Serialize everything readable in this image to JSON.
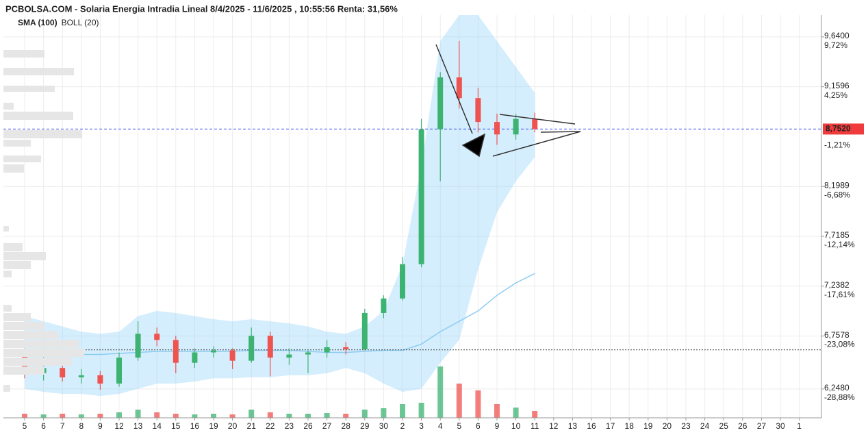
{
  "chart_data": {
    "type": "candlestick",
    "title": "PCBOLSA.COM - Solaria Energia Intradia Lineal 8/4/2025 - 11/6/2025 , 10:55:56 Renta: 31,56%",
    "categories": [
      "5",
      "6",
      "7",
      "8",
      "9",
      "12",
      "13",
      "14",
      "15",
      "16",
      "19",
      "20",
      "21",
      "22",
      "23",
      "26",
      "27",
      "28",
      "29",
      "30",
      "2",
      "3",
      "4",
      "5",
      "6",
      "9",
      "10",
      "11",
      "12",
      "13",
      "16",
      "17",
      "18",
      "19",
      "20",
      "23",
      "24",
      "25",
      "26",
      "27",
      "30",
      "1"
    ],
    "open": [
      6.6,
      6.4,
      6.45,
      6.36,
      6.38,
      6.3,
      6.55,
      6.78,
      6.72,
      6.5,
      6.6,
      6.62,
      6.52,
      6.76,
      6.55,
      6.58,
      6.6,
      6.65,
      6.63,
      6.98,
      7.12,
      7.45,
      8.75,
      9.25,
      9.05,
      8.82,
      8.7,
      8.85,
      null,
      null,
      null,
      null,
      null,
      null,
      null,
      null,
      null,
      null,
      null,
      null,
      null,
      null
    ],
    "high": [
      6.64,
      6.58,
      6.55,
      6.44,
      6.42,
      6.6,
      6.9,
      6.84,
      6.76,
      6.64,
      6.66,
      6.64,
      6.84,
      6.8,
      6.64,
      6.63,
      6.72,
      6.7,
      7.02,
      7.15,
      7.52,
      8.85,
      9.3,
      9.6,
      9.15,
      8.9,
      8.9,
      8.91,
      null,
      null,
      null,
      null,
      null,
      null,
      null,
      null,
      null,
      null,
      null,
      null,
      null,
      null
    ],
    "low": [
      6.35,
      6.33,
      6.32,
      6.3,
      6.24,
      6.27,
      6.52,
      6.66,
      6.4,
      6.45,
      6.55,
      6.44,
      6.5,
      6.37,
      6.48,
      6.4,
      6.55,
      6.58,
      6.62,
      6.93,
      7.1,
      7.42,
      8.25,
      8.95,
      8.72,
      8.6,
      8.65,
      8.72,
      null,
      null,
      null,
      null,
      null,
      null,
      null,
      null,
      null,
      null,
      null,
      null,
      null,
      null
    ],
    "close": [
      6.4,
      6.45,
      6.36,
      6.38,
      6.3,
      6.55,
      6.78,
      6.72,
      6.5,
      6.6,
      6.62,
      6.52,
      6.76,
      6.55,
      6.58,
      6.6,
      6.65,
      6.63,
      6.98,
      7.12,
      7.45,
      8.75,
      9.25,
      9.05,
      8.82,
      8.7,
      8.85,
      8.752,
      null,
      null,
      null,
      null,
      null,
      null,
      null,
      null,
      null,
      null,
      null,
      null,
      null,
      null
    ],
    "volume": [
      6,
      5,
      6,
      5,
      6,
      8,
      12,
      8,
      6,
      5,
      6,
      5,
      12,
      8,
      6,
      6,
      7,
      6,
      12,
      14,
      20,
      22,
      75,
      50,
      40,
      20,
      15,
      10,
      null,
      null,
      null,
      null,
      null,
      null,
      null,
      null,
      null,
      null,
      null,
      null,
      null,
      null
    ],
    "up_color": "#3cb371",
    "down_color": "#ef5350",
    "indicators": [
      {
        "name": "SMA (100)",
        "color": "#8ccbf2",
        "values": [
          6.6,
          6.59,
          6.58,
          6.58,
          6.58,
          6.59,
          6.6,
          6.61,
          6.61,
          6.61,
          6.61,
          6.61,
          6.62,
          6.62,
          6.62,
          6.61,
          6.6,
          6.6,
          6.61,
          6.62,
          6.62,
          6.68,
          6.8,
          6.9,
          7.0,
          7.15,
          7.27,
          7.36,
          null,
          null,
          null,
          null,
          null,
          null,
          null,
          null,
          null,
          null,
          null,
          null,
          null,
          null
        ]
      },
      {
        "name": "BOLL (20)",
        "color": "#b9e0f7",
        "upper": [
          6.95,
          6.9,
          6.85,
          6.8,
          6.78,
          6.8,
          6.95,
          7.0,
          6.98,
          6.95,
          6.92,
          6.9,
          6.92,
          6.9,
          6.88,
          6.85,
          6.8,
          6.78,
          6.85,
          7.0,
          7.45,
          8.4,
          9.6,
          9.85,
          9.85,
          9.6,
          9.35,
          9.1,
          null,
          null,
          null,
          null,
          null,
          null,
          null,
          null,
          null,
          null,
          null,
          null,
          null,
          null
        ],
        "lower": [
          6.25,
          6.22,
          6.2,
          6.2,
          6.18,
          6.2,
          6.25,
          6.3,
          6.3,
          6.32,
          6.35,
          6.35,
          6.36,
          6.36,
          6.38,
          6.38,
          6.4,
          6.45,
          6.4,
          6.3,
          6.22,
          6.25,
          6.5,
          6.72,
          7.4,
          7.95,
          8.25,
          8.48,
          null,
          null,
          null,
          null,
          null,
          null,
          null,
          null,
          null,
          null,
          null,
          null,
          null,
          null
        ]
      }
    ],
    "ylim": [
      5.97,
      9.85
    ],
    "yticks": [
      {
        "value": 9.64,
        "label": "9,6400"
      },
      {
        "value": 9.1596,
        "label": "9,1596"
      },
      {
        "value": 8.1989,
        "label": "8,1989"
      },
      {
        "value": 7.7185,
        "label": "7,7185"
      },
      {
        "value": 7.2382,
        "label": "7,2382"
      },
      {
        "value": 6.7578,
        "label": "6,7578"
      },
      {
        "value": 6.248,
        "label": "6,2480"
      }
    ],
    "y2lim": [
      -32.05,
      12.11
    ],
    "y2ticks": [
      {
        "value": 9.72,
        "label": "9,72%"
      },
      {
        "value": 4.25,
        "label": "4,25%"
      },
      {
        "value": -1.21,
        "label": "-1,21%"
      },
      {
        "value": -6.68,
        "label": "-6,68%"
      },
      {
        "value": -12.14,
        "label": "-12,14%"
      },
      {
        "value": -17.61,
        "label": "-17,61%"
      },
      {
        "value": -23.08,
        "label": "-23,08%"
      },
      {
        "value": -28.88,
        "label": "-28,88%"
      }
    ],
    "current_price": {
      "value": 8.752,
      "label": "8,7520"
    },
    "reference_level": 6.625,
    "grid": true
  }
}
